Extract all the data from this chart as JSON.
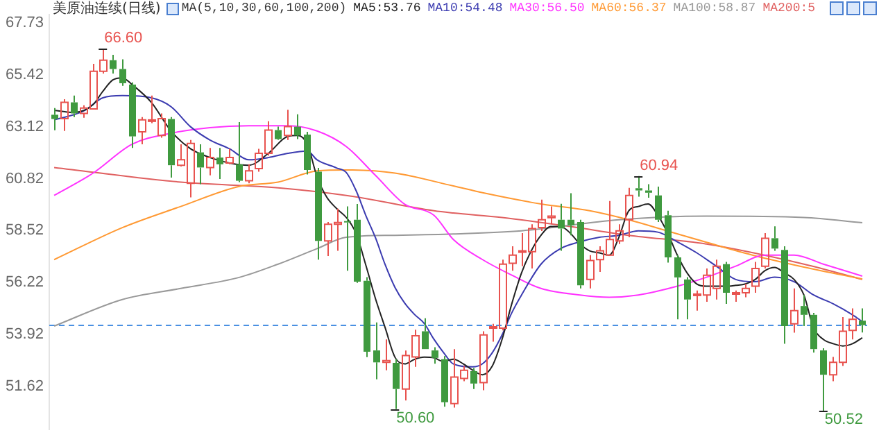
{
  "chart_data": {
    "type": "candlestick",
    "title": "美原油连续(日线)",
    "legend_title": "MA(5,10,30,60,100,200)",
    "legend": "top",
    "marker": "none",
    "tick_labels": "y",
    "categories": [
      null,
      null,
      null,
      null,
      null,
      null,
      null,
      null,
      null,
      null,
      null,
      null,
      null,
      null,
      null,
      null,
      null,
      null,
      null,
      null,
      null,
      null,
      null,
      null,
      null,
      null,
      null,
      null,
      null,
      null,
      null,
      null,
      null,
      null,
      null,
      null,
      null,
      null,
      null,
      null,
      null,
      null,
      null,
      null,
      null,
      null,
      null,
      null,
      null,
      null,
      null,
      null,
      null,
      null,
      null,
      null,
      null,
      null,
      null,
      null,
      null,
      null,
      null,
      null,
      null,
      null,
      null,
      null,
      null,
      null,
      null,
      null,
      null,
      null,
      null,
      null,
      null,
      null,
      null,
      null,
      null,
      null,
      null,
      null
    ],
    "ylim": [
      49.7,
      68.1
    ],
    "yticks": [
      51.62,
      53.92,
      56.22,
      58.52,
      60.82,
      63.12,
      65.42,
      67.73
    ],
    "ohlc": [
      [
        63.66,
        63.96,
        62.97,
        63.47
      ],
      [
        63.49,
        64.35,
        62.94,
        64.21
      ],
      [
        64.21,
        64.51,
        63.56,
        63.72
      ],
      [
        63.72,
        64.08,
        63.53,
        63.96
      ],
      [
        63.92,
        65.92,
        63.92,
        65.59
      ],
      [
        65.59,
        66.6,
        65.49,
        66.08
      ],
      [
        66.08,
        66.32,
        65.49,
        65.69
      ],
      [
        65.69,
        66.12,
        64.94,
        65.06
      ],
      [
        65.0,
        65.1,
        62.19,
        62.7
      ],
      [
        62.9,
        63.56,
        62.35,
        63.43
      ],
      [
        63.37,
        64.51,
        63.29,
        63.43
      ],
      [
        62.74,
        63.72,
        62.64,
        63.49
      ],
      [
        63.47,
        63.56,
        60.87,
        61.42
      ],
      [
        61.42,
        62.35,
        61.36,
        61.66
      ],
      [
        60.62,
        62.54,
        59.99,
        62.39
      ],
      [
        61.99,
        62.35,
        60.58,
        61.32
      ],
      [
        61.32,
        62.19,
        60.97,
        61.76
      ],
      [
        61.76,
        62.19,
        60.81,
        61.46
      ],
      [
        61.52,
        62.15,
        61.46,
        61.76
      ],
      [
        61.46,
        63.33,
        60.67,
        60.73
      ],
      [
        60.73,
        61.46,
        60.62,
        61.17
      ],
      [
        61.27,
        62.15,
        61.13,
        61.95
      ],
      [
        61.95,
        63.37,
        61.85,
        62.98
      ],
      [
        62.98,
        63.13,
        62.54,
        62.58
      ],
      [
        62.74,
        63.88,
        62.54,
        63.13
      ],
      [
        63.13,
        63.68,
        62.58,
        62.74
      ],
      [
        62.78,
        62.9,
        61.01,
        61.21
      ],
      [
        61.13,
        61.3,
        57.23,
        58.06
      ],
      [
        58.06,
        58.9,
        57.39,
        58.8
      ],
      [
        58.8,
        59.49,
        57.62,
        58.88
      ],
      [
        58.94,
        59.59,
        56.74,
        58.88
      ],
      [
        59.0,
        59.7,
        56.2,
        56.25
      ],
      [
        56.29,
        56.45,
        52.9,
        53.14
      ],
      [
        53.2,
        54.44,
        51.92,
        52.67
      ],
      [
        52.67,
        53.69,
        52.32,
        52.75
      ],
      [
        52.65,
        52.81,
        50.6,
        51.49
      ],
      [
        51.49,
        53.2,
        50.98,
        52.97
      ],
      [
        52.91,
        54.12,
        52.47,
        53.85
      ],
      [
        54.05,
        54.63,
        53.26,
        53.26
      ],
      [
        53.2,
        53.34,
        52.61,
        52.87
      ],
      [
        52.81,
        52.95,
        50.7,
        50.9
      ],
      [
        50.84,
        53.26,
        50.66,
        52.02
      ],
      [
        51.96,
        52.51,
        51.83,
        52.32
      ],
      [
        52.28,
        52.42,
        51.49,
        51.73
      ],
      [
        51.77,
        54.05,
        51.43,
        53.89
      ],
      [
        54.19,
        54.38,
        53.59,
        54.25
      ],
      [
        54.19,
        57.23,
        54.09,
        57.03
      ],
      [
        57.07,
        57.82,
        56.74,
        57.43
      ],
      [
        57.58,
        58.41,
        56.94,
        57.62
      ],
      [
        57.58,
        58.8,
        56.84,
        58.61
      ],
      [
        58.65,
        59.89,
        58.5,
        59.0
      ],
      [
        59.09,
        59.59,
        58.8,
        59.16
      ],
      [
        59.0,
        59.71,
        57.62,
        58.61
      ],
      [
        59.0,
        60.18,
        58.31,
        58.76
      ],
      [
        58.9,
        59.0,
        55.95,
        56.09
      ],
      [
        56.35,
        57.43,
        55.95,
        57.19
      ],
      [
        57.23,
        57.82,
        56.68,
        57.62
      ],
      [
        57.43,
        59.83,
        57.39,
        58.12
      ],
      [
        58.06,
        58.8,
        57.92,
        58.51
      ],
      [
        59.0,
        60.42,
        58.22,
        60.08
      ],
      [
        60.4,
        60.94,
        60.02,
        60.3
      ],
      [
        60.3,
        60.58,
        59.98,
        60.2
      ],
      [
        60.08,
        60.47,
        58.9,
        59.0
      ],
      [
        59.2,
        59.4,
        57.1,
        57.33
      ],
      [
        57.33,
        57.43,
        54.58,
        56.44
      ],
      [
        56.35,
        56.45,
        54.58,
        55.46
      ],
      [
        55.64,
        55.86,
        54.97,
        55.7
      ],
      [
        55.66,
        56.84,
        55.36,
        56.54
      ],
      [
        55.95,
        57.23,
        55.46,
        56.94
      ],
      [
        57.03,
        57.13,
        55.27,
        55.76
      ],
      [
        55.7,
        55.86,
        55.36,
        55.76
      ],
      [
        55.76,
        56.15,
        55.56,
        55.95
      ],
      [
        56.05,
        57.13,
        55.76,
        56.84
      ],
      [
        56.94,
        58.41,
        56.84,
        58.18
      ],
      [
        58.18,
        58.71,
        57.62,
        57.72
      ],
      [
        57.66,
        57.82,
        53.5,
        54.28
      ],
      [
        54.38,
        55.95,
        53.99,
        54.97
      ],
      [
        55.17,
        55.66,
        54.28,
        54.78
      ],
      [
        54.78,
        54.87,
        53.1,
        53.26
      ],
      [
        53.2,
        53.3,
        50.52,
        52.12
      ],
      [
        52.12,
        52.91,
        51.83,
        52.67
      ],
      [
        52.67,
        54.68,
        52.51,
        54.05
      ],
      [
        54.09,
        55.07,
        53.69,
        54.58
      ],
      [
        54.52,
        55.07,
        54.0,
        54.32
      ]
    ],
    "series": [
      {
        "type": "line",
        "name": "MA5:53.76",
        "color": "#222222",
        "values": [
          63.86,
          null,
          63.76,
          null,
          64.11,
          64.7,
          65.2,
          65.3,
          65.0,
          null,
          64.2,
          null,
          62.94,
          null,
          62.15,
          null,
          61.76,
          null,
          61.52,
          null,
          61.42,
          null,
          61.95,
          null,
          62.7,
          62.74,
          62.35,
          60.9,
          60.0,
          59.5,
          59.1,
          58.4,
          57.0,
          55.5,
          54.2,
          52.9,
          52.6,
          52.8,
          52.9,
          52.87,
          52.71,
          52.81,
          52.61,
          52.32,
          52.12,
          52.51,
          53.69,
          55.27,
          56.64,
          57.62,
          58.31,
          58.7,
          58.7,
          58.41,
          57.92,
          57.62,
          57.53,
          57.43,
          58.22,
          59.39,
          59.59,
          59.7,
          59.2,
          58.41,
          57.43,
          56.64,
          56.15,
          56.05,
          56.05,
          56.05,
          56.09,
          56.15,
          56.35,
          56.74,
          56.88,
          56.64,
          56.35,
          55.66,
          54.19,
          53.69,
          53.5,
          53.4,
          53.5,
          53.76
        ]
      },
      {
        "type": "line",
        "name": "MA10:54.48",
        "color": "#3b3bb0",
        "values": [
          63.43,
          null,
          null,
          63.82,
          null,
          64.41,
          null,
          64.51,
          null,
          null,
          64.41,
          null,
          64.02,
          null,
          63.13,
          null,
          62.54,
          null,
          62.15,
          null,
          61.66,
          null,
          61.76,
          null,
          61.95,
          null,
          62.05,
          61.66,
          null,
          61.3,
          61.1,
          60.3,
          59.2,
          58.2,
          57.0,
          56.0,
          55.3,
          54.8,
          54.4,
          53.7,
          53.1,
          52.6,
          null,
          52.47,
          52.61,
          53.1,
          53.89,
          54.87,
          55.66,
          null,
          57.03,
          null,
          57.72,
          null,
          58.02,
          null,
          58.22,
          null,
          58.31,
          null,
          58.51,
          null,
          58.45,
          null,
          58.02,
          null,
          57.53,
          null,
          56.94,
          null,
          56.35,
          null,
          56.25,
          null,
          56.45,
          null,
          56.25,
          null,
          55.66,
          null,
          55.27,
          null,
          54.78,
          54.48
        ]
      },
      {
        "type": "line",
        "name": "MA30:56.50",
        "color": "#ff33ff",
        "values": [
          60.08,
          null,
          null,
          null,
          61.07,
          null,
          null,
          null,
          62.35,
          null,
          null,
          null,
          62.84,
          null,
          null,
          null,
          63.09,
          null,
          null,
          null,
          63.17,
          null,
          null,
          null,
          63.17,
          null,
          null,
          62.94,
          null,
          null,
          62.25,
          null,
          null,
          60.97,
          null,
          null,
          59.69,
          null,
          null,
          59.2,
          null,
          58.12,
          null,
          null,
          57.23,
          null,
          null,
          56.54,
          null,
          null,
          55.95,
          null,
          null,
          null,
          55.66,
          null,
          null,
          55.56,
          null,
          null,
          55.66,
          null,
          null,
          null,
          56.05,
          null,
          null,
          56.45,
          null,
          null,
          56.94,
          null,
          null,
          57.43,
          null,
          null,
          57.43,
          null,
          null,
          57.03,
          null,
          null,
          null,
          56.5
        ]
      },
      {
        "type": "line",
        "name": "MA60:56.37",
        "color": "#ff9933",
        "values": [
          57.23,
          null,
          null,
          null,
          null,
          null,
          null,
          58.65,
          null,
          null,
          null,
          null,
          null,
          59.59,
          null,
          null,
          null,
          null,
          null,
          60.48,
          null,
          null,
          null,
          60.67,
          null,
          null,
          null,
          61.17,
          null,
          null,
          61.21,
          null,
          null,
          null,
          null,
          61.07,
          null,
          null,
          null,
          null,
          null,
          60.5,
          null,
          null,
          60.2,
          null,
          null,
          null,
          null,
          null,
          59.7,
          null,
          null,
          null,
          null,
          59.4,
          null,
          null,
          null,
          59.0,
          null,
          null,
          null,
          58.5,
          null,
          null,
          null,
          58.0,
          null,
          null,
          null,
          null,
          57.4,
          null,
          null,
          null,
          null,
          56.9,
          null,
          null,
          null,
          null,
          null,
          56.37
        ]
      },
      {
        "type": "line",
        "name": "MA100:58.87",
        "color": "#999999",
        "values": [
          54.28,
          null,
          null,
          null,
          null,
          null,
          null,
          55.46,
          null,
          null,
          null,
          null,
          null,
          55.95,
          null,
          null,
          null,
          null,
          null,
          56.44,
          null,
          null,
          null,
          57.03,
          null,
          null,
          null,
          57.72,
          null,
          null,
          58.22,
          null,
          null,
          null,
          null,
          58.31,
          null,
          null,
          null,
          null,
          null,
          58.37,
          null,
          null,
          null,
          null,
          null,
          null,
          58.51,
          null,
          null,
          null,
          null,
          null,
          null,
          null,
          null,
          null,
          59.0,
          null,
          null,
          null,
          null,
          null,
          null,
          null,
          null,
          59.16,
          null,
          null,
          null,
          null,
          null,
          null,
          null,
          null,
          null,
          59.1,
          null,
          null,
          null,
          null,
          null,
          58.87
        ]
      },
      {
        "type": "line",
        "name": "MA200:5",
        "color": "#e06060",
        "values": [
          61.32,
          null,
          null,
          null,
          null,
          null,
          null,
          null,
          null,
          null,
          null,
          null,
          null,
          60.67,
          null,
          null,
          null,
          null,
          null,
          null,
          null,
          null,
          null,
          60.42,
          null,
          null,
          null,
          null,
          null,
          null,
          60.08,
          null,
          null,
          null,
          null,
          null,
          null,
          null,
          null,
          59.4,
          null,
          59.3,
          null,
          null,
          null,
          null,
          59.1,
          null,
          null,
          null,
          null,
          null,
          null,
          58.7,
          null,
          null,
          null,
          null,
          null,
          58.31,
          null,
          null,
          null,
          null,
          null,
          null,
          null,
          57.92,
          null,
          null,
          null,
          null,
          null,
          null,
          null,
          null,
          null,
          57.03,
          null,
          null,
          null,
          null,
          null,
          56.35
        ]
      }
    ],
    "ref_lines": [
      {
        "axis": "y",
        "value": 54.32,
        "color": "#4a90e2",
        "line_style": "dashed"
      }
    ],
    "annotations": [
      "66.60",
      "60.94",
      "50.60",
      "50.52"
    ]
  }
}
